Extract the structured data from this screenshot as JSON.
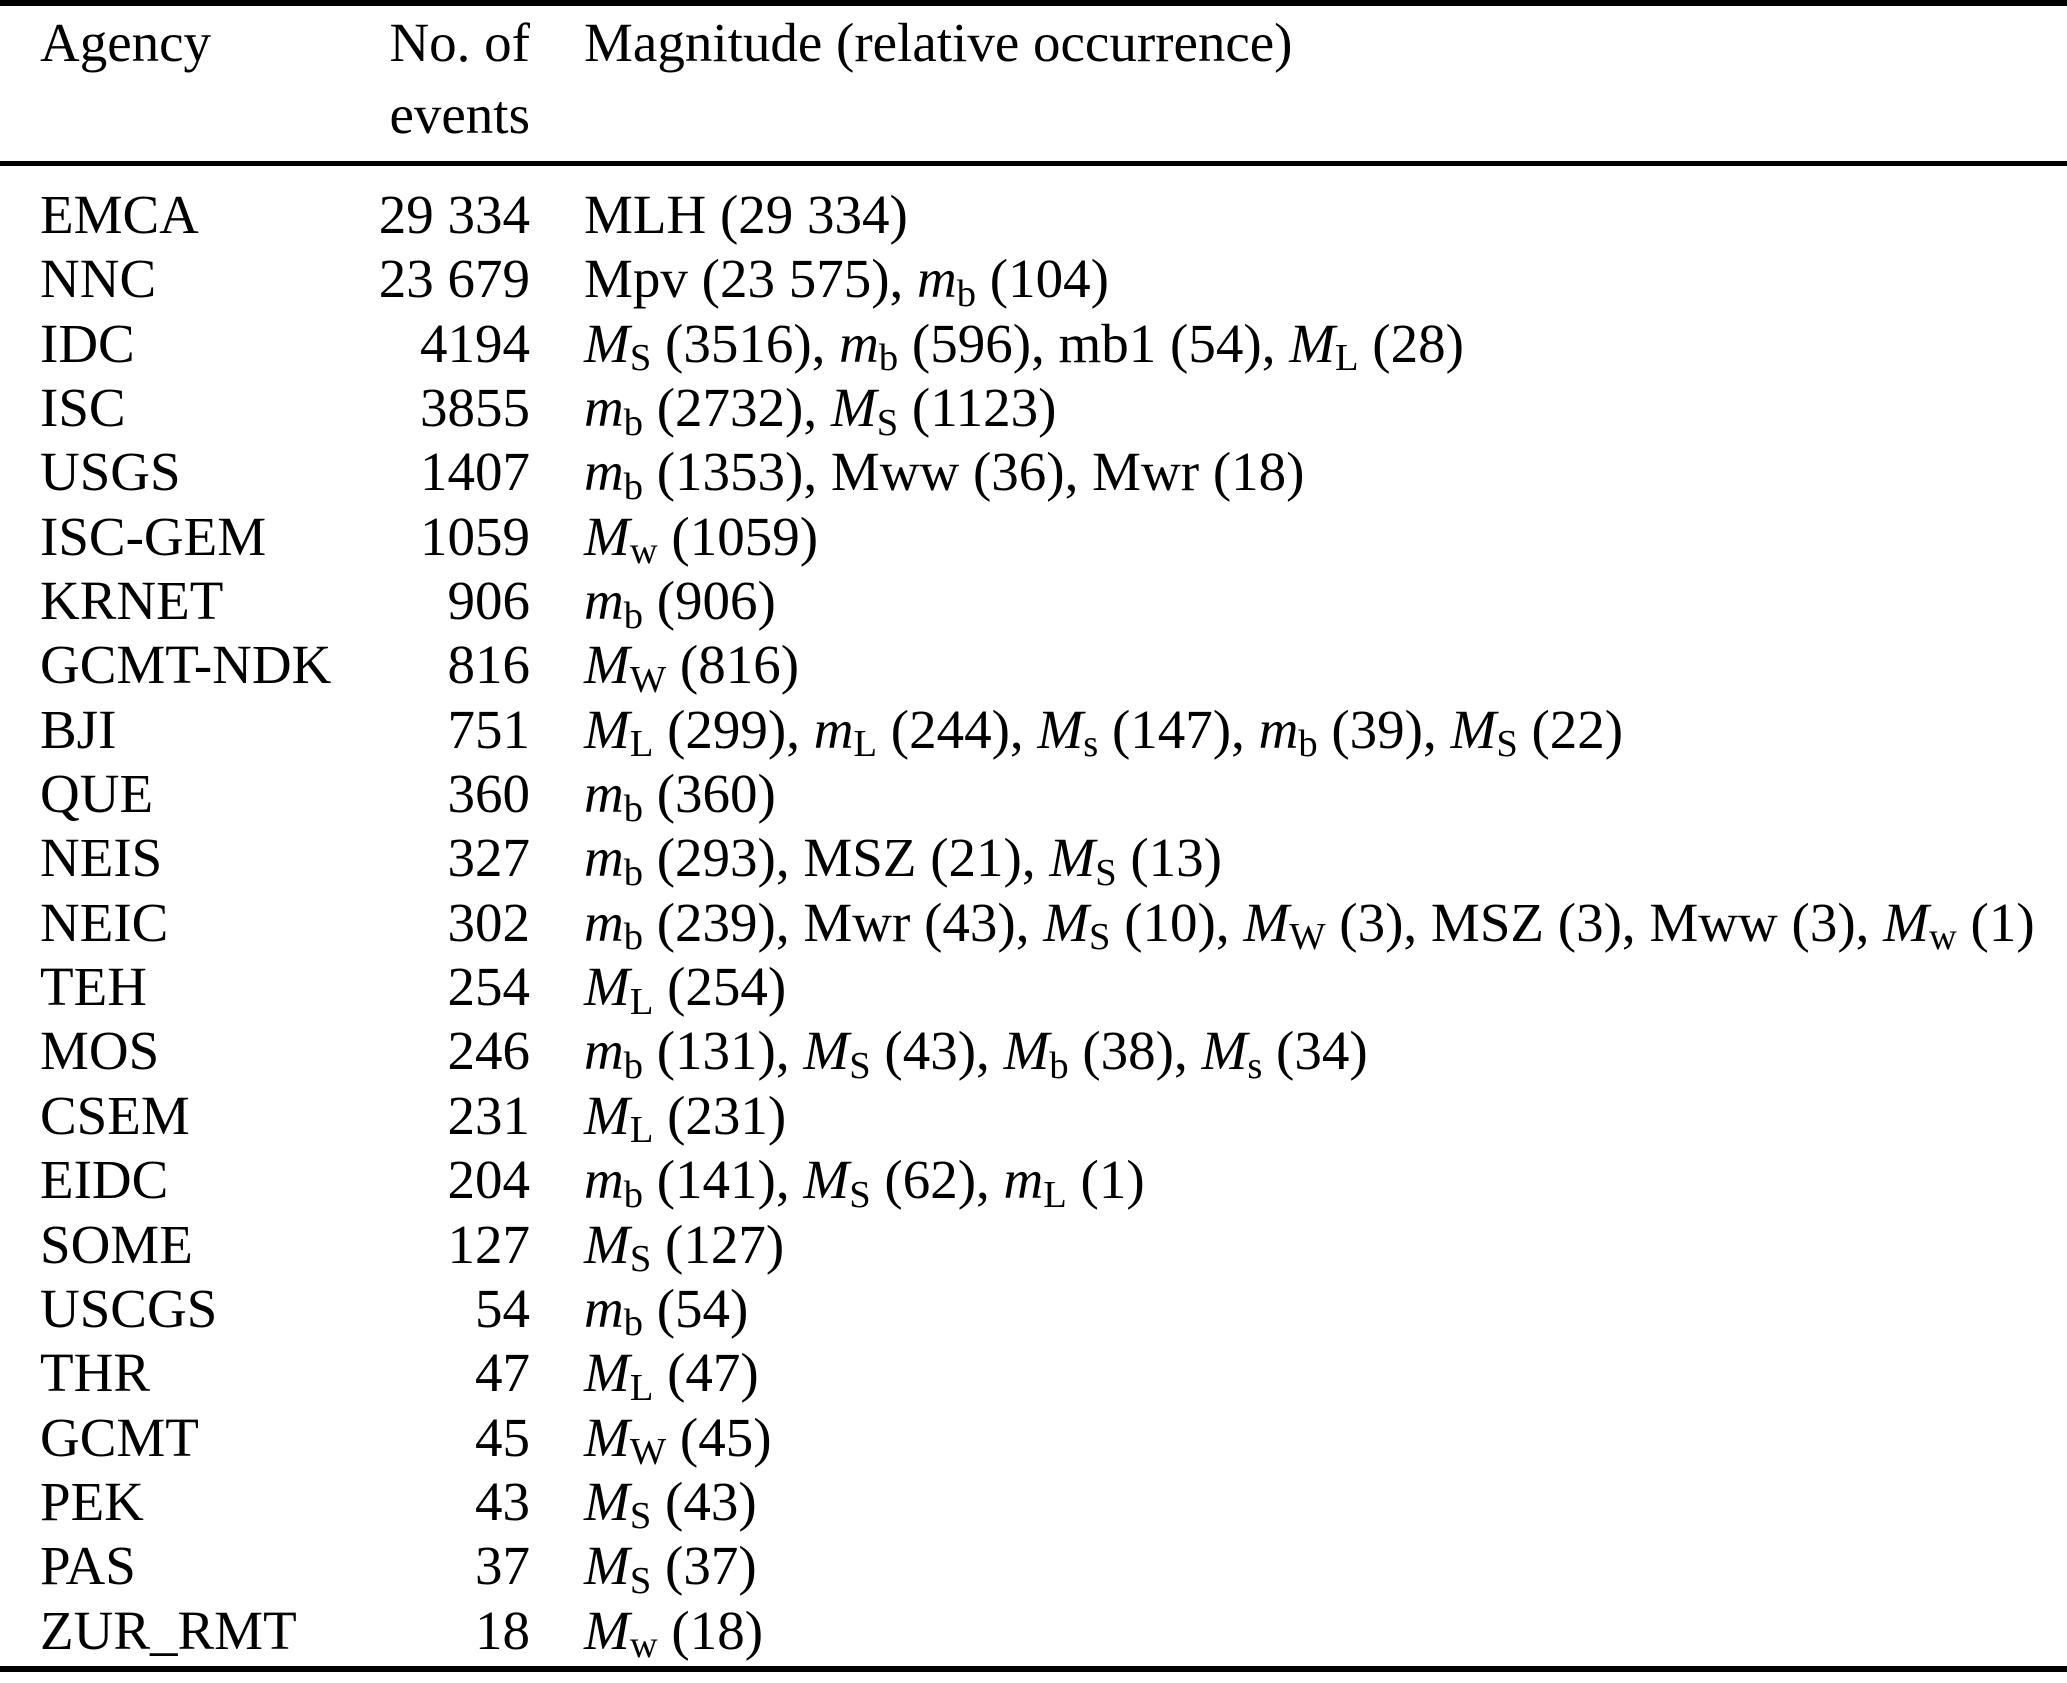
{
  "table": {
    "headers": {
      "agency": "Agency",
      "events_line1": "No. of",
      "events_line2": "events",
      "magnitude": "Magnitude (relative occurrence)"
    },
    "rows": [
      {
        "agency": "EMCA",
        "events": "29 334",
        "mags": [
          {
            "base": "MLH",
            "sub": "",
            "italic": false,
            "count": "29 334"
          }
        ]
      },
      {
        "agency": "NNC",
        "events": "23 679",
        "mags": [
          {
            "base": "Mpv",
            "sub": "",
            "italic": false,
            "count": "23 575"
          },
          {
            "base": "m",
            "sub": "b",
            "italic": true,
            "count": "104"
          }
        ]
      },
      {
        "agency": "IDC",
        "events": "4194",
        "mags": [
          {
            "base": "M",
            "sub": "S",
            "italic": true,
            "count": "3516"
          },
          {
            "base": "m",
            "sub": "b",
            "italic": true,
            "count": "596"
          },
          {
            "base": "mb1",
            "sub": "",
            "italic": false,
            "count": "54"
          },
          {
            "base": "M",
            "sub": "L",
            "italic": true,
            "count": "28"
          }
        ]
      },
      {
        "agency": "ISC",
        "events": "3855",
        "mags": [
          {
            "base": "m",
            "sub": "b",
            "italic": true,
            "count": "2732"
          },
          {
            "base": "M",
            "sub": "S",
            "italic": true,
            "count": "1123"
          }
        ]
      },
      {
        "agency": "USGS",
        "events": "1407",
        "mags": [
          {
            "base": "m",
            "sub": "b",
            "italic": true,
            "count": "1353"
          },
          {
            "base": "Mww",
            "sub": "",
            "italic": false,
            "count": "36"
          },
          {
            "base": "Mwr",
            "sub": "",
            "italic": false,
            "count": "18"
          }
        ]
      },
      {
        "agency": "ISC-GEM",
        "events": "1059",
        "mags": [
          {
            "base": "M",
            "sub": "w",
            "italic": true,
            "count": "1059"
          }
        ]
      },
      {
        "agency": "KRNET",
        "events": "906",
        "mags": [
          {
            "base": "m",
            "sub": "b",
            "italic": true,
            "count": "906"
          }
        ]
      },
      {
        "agency": "GCMT-NDK",
        "events": "816",
        "mags": [
          {
            "base": "M",
            "sub": "W",
            "italic": true,
            "count": "816"
          }
        ]
      },
      {
        "agency": "BJI",
        "events": "751",
        "mags": [
          {
            "base": "M",
            "sub": "L",
            "italic": true,
            "count": "299"
          },
          {
            "base": "m",
            "sub": "L",
            "italic": true,
            "count": "244"
          },
          {
            "base": "M",
            "sub": "s",
            "italic": true,
            "count": "147"
          },
          {
            "base": "m",
            "sub": "b",
            "italic": true,
            "count": "39"
          },
          {
            "base": "M",
            "sub": "S",
            "italic": true,
            "count": "22"
          }
        ]
      },
      {
        "agency": "QUE",
        "events": "360",
        "mags": [
          {
            "base": "m",
            "sub": "b",
            "italic": true,
            "count": "360"
          }
        ]
      },
      {
        "agency": "NEIS",
        "events": "327",
        "mags": [
          {
            "base": "m",
            "sub": "b",
            "italic": true,
            "count": "293"
          },
          {
            "base": "MSZ",
            "sub": "",
            "italic": false,
            "count": "21"
          },
          {
            "base": "M",
            "sub": "S",
            "italic": true,
            "count": "13"
          }
        ]
      },
      {
        "agency": "NEIC",
        "events": "302",
        "mags": [
          {
            "base": "m",
            "sub": "b",
            "italic": true,
            "count": "239"
          },
          {
            "base": "Mwr",
            "sub": "",
            "italic": false,
            "count": "43"
          },
          {
            "base": "M",
            "sub": "S",
            "italic": true,
            "count": "10"
          },
          {
            "base": "M",
            "sub": "W",
            "italic": true,
            "count": "3"
          },
          {
            "base": "MSZ",
            "sub": "",
            "italic": false,
            "count": "3"
          },
          {
            "base": "Mww",
            "sub": "",
            "italic": false,
            "count": "3"
          },
          {
            "base": "M",
            "sub": "w",
            "italic": true,
            "count": "1"
          }
        ]
      },
      {
        "agency": "TEH",
        "events": "254",
        "mags": [
          {
            "base": "M",
            "sub": "L",
            "italic": true,
            "count": "254"
          }
        ]
      },
      {
        "agency": "MOS",
        "events": "246",
        "mags": [
          {
            "base": "m",
            "sub": "b",
            "italic": true,
            "count": "131"
          },
          {
            "base": "M",
            "sub": "S",
            "italic": true,
            "count": "43"
          },
          {
            "base": "M",
            "sub": "b",
            "italic": true,
            "count": "38"
          },
          {
            "base": "M",
            "sub": "s",
            "italic": true,
            "count": "34"
          }
        ]
      },
      {
        "agency": "CSEM",
        "events": "231",
        "mags": [
          {
            "base": "M",
            "sub": "L",
            "italic": true,
            "count": "231"
          }
        ]
      },
      {
        "agency": "EIDC",
        "events": "204",
        "mags": [
          {
            "base": "m",
            "sub": "b",
            "italic": true,
            "count": "141"
          },
          {
            "base": "M",
            "sub": "S",
            "italic": true,
            "count": "62"
          },
          {
            "base": "m",
            "sub": "L",
            "italic": true,
            "count": "1"
          }
        ]
      },
      {
        "agency": "SOME",
        "events": "127",
        "mags": [
          {
            "base": "M",
            "sub": "S",
            "italic": true,
            "count": "127"
          }
        ]
      },
      {
        "agency": "USCGS",
        "events": "54",
        "mags": [
          {
            "base": "m",
            "sub": "b",
            "italic": true,
            "count": "54"
          }
        ]
      },
      {
        "agency": "THR",
        "events": "47",
        "mags": [
          {
            "base": "M",
            "sub": "L",
            "italic": true,
            "count": "47"
          }
        ]
      },
      {
        "agency": "GCMT",
        "events": "45",
        "mags": [
          {
            "base": "M",
            "sub": "W",
            "italic": true,
            "count": "45"
          }
        ]
      },
      {
        "agency": "PEK",
        "events": "43",
        "mags": [
          {
            "base": "M",
            "sub": "S",
            "italic": true,
            "count": "43"
          }
        ]
      },
      {
        "agency": "PAS",
        "events": "37",
        "mags": [
          {
            "base": "M",
            "sub": "S",
            "italic": true,
            "count": "37"
          }
        ]
      },
      {
        "agency": "ZUR_RMT",
        "events": "18",
        "mags": [
          {
            "base": "M",
            "sub": "w",
            "italic": true,
            "count": "18"
          }
        ]
      }
    ]
  }
}
